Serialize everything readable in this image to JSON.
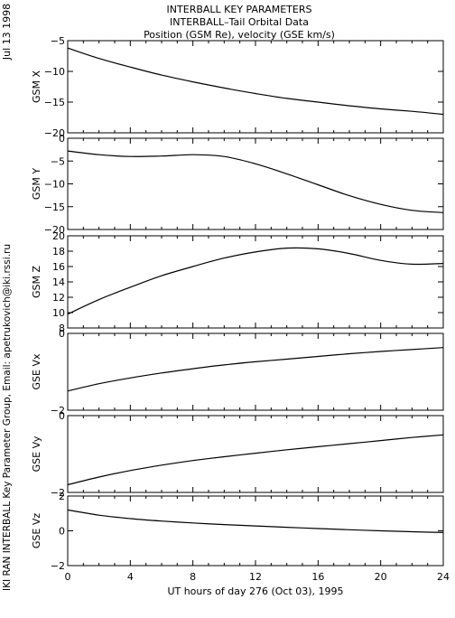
{
  "header": {
    "line1": "INTERBALL KEY PARAMETERS",
    "line2": "INTERBALL–Tail Orbital Data",
    "line3": "Position (GSM Re), velocity (GSE km/s)"
  },
  "date_stamp": "Jul 13 1998",
  "side_credit": "IKI RAN INTERBALL Key Parameter Group, Email: apetrukovich@iki.rssi.ru",
  "colors": {
    "line": "#000000",
    "background": "#ffffff"
  },
  "chart_data": [
    {
      "type": "line",
      "ylabel": "GSM X",
      "ylim": [
        -20,
        -5
      ],
      "yticks": [
        -5,
        -10,
        -15,
        -20
      ],
      "x": [
        0,
        2,
        4,
        6,
        8,
        10,
        12,
        14,
        16,
        18,
        20,
        22,
        24
      ],
      "series": [
        {
          "values": [
            -6.2,
            -7.9,
            -9.3,
            -10.6,
            -11.7,
            -12.7,
            -13.6,
            -14.4,
            -15.0,
            -15.6,
            -16.1,
            -16.5,
            -17.0
          ]
        }
      ]
    },
    {
      "type": "line",
      "ylabel": "GSM Y",
      "ylim": [
        -20,
        0
      ],
      "yticks": [
        0,
        -5,
        -10,
        -15,
        -20
      ],
      "x": [
        0,
        2,
        4,
        6,
        8,
        10,
        12,
        14,
        16,
        18,
        20,
        22,
        24
      ],
      "series": [
        {
          "values": [
            -2.8,
            -3.6,
            -4.0,
            -3.9,
            -3.6,
            -4.0,
            -5.6,
            -7.8,
            -10.2,
            -12.6,
            -14.5,
            -15.8,
            -16.3
          ]
        }
      ]
    },
    {
      "type": "line",
      "ylabel": "GSM Z",
      "ylim": [
        8,
        20
      ],
      "yticks": [
        20,
        18,
        16,
        14,
        12,
        10,
        8
      ],
      "x": [
        0,
        2,
        4,
        6,
        8,
        10,
        12,
        14,
        16,
        18,
        20,
        22,
        24
      ],
      "series": [
        {
          "values": [
            9.8,
            11.7,
            13.3,
            14.8,
            16.0,
            17.1,
            17.9,
            18.4,
            18.3,
            17.7,
            16.8,
            16.3,
            16.4
          ]
        }
      ]
    },
    {
      "type": "line",
      "ylabel": "GSE Vx",
      "ylim": [
        -2,
        0
      ],
      "yticks": [
        0,
        -2
      ],
      "x": [
        0,
        2,
        4,
        6,
        8,
        10,
        12,
        14,
        16,
        18,
        20,
        22,
        24
      ],
      "series": [
        {
          "values": [
            -1.5,
            -1.31,
            -1.16,
            -1.03,
            -0.92,
            -0.82,
            -0.74,
            -0.67,
            -0.6,
            -0.53,
            -0.47,
            -0.42,
            -0.37
          ]
        }
      ]
    },
    {
      "type": "line",
      "ylabel": "GSE Vy",
      "ylim": [
        -2,
        0
      ],
      "yticks": [
        0,
        -2
      ],
      "x": [
        0,
        2,
        4,
        6,
        8,
        10,
        12,
        14,
        16,
        18,
        20,
        22,
        24
      ],
      "series": [
        {
          "values": [
            -1.8,
            -1.6,
            -1.43,
            -1.29,
            -1.17,
            -1.07,
            -0.98,
            -0.89,
            -0.81,
            -0.73,
            -0.65,
            -0.57,
            -0.5
          ]
        }
      ]
    },
    {
      "type": "line",
      "ylabel": "GSE Vz",
      "ylim": [
        -2,
        2
      ],
      "yticks": [
        2,
        0,
        -2
      ],
      "x": [
        0,
        2,
        4,
        6,
        8,
        10,
        12,
        14,
        16,
        18,
        20,
        22,
        24
      ],
      "series": [
        {
          "values": [
            1.2,
            0.9,
            0.7,
            0.56,
            0.45,
            0.36,
            0.28,
            0.2,
            0.13,
            0.06,
            0.0,
            -0.05,
            -0.1
          ]
        }
      ]
    }
  ],
  "x_axis": {
    "xlim": [
      0,
      24
    ],
    "ticks": [
      0,
      4,
      8,
      12,
      16,
      20,
      24
    ],
    "minor_step": 1,
    "label": "UT hours of day 276 (Oct 03), 1995"
  }
}
